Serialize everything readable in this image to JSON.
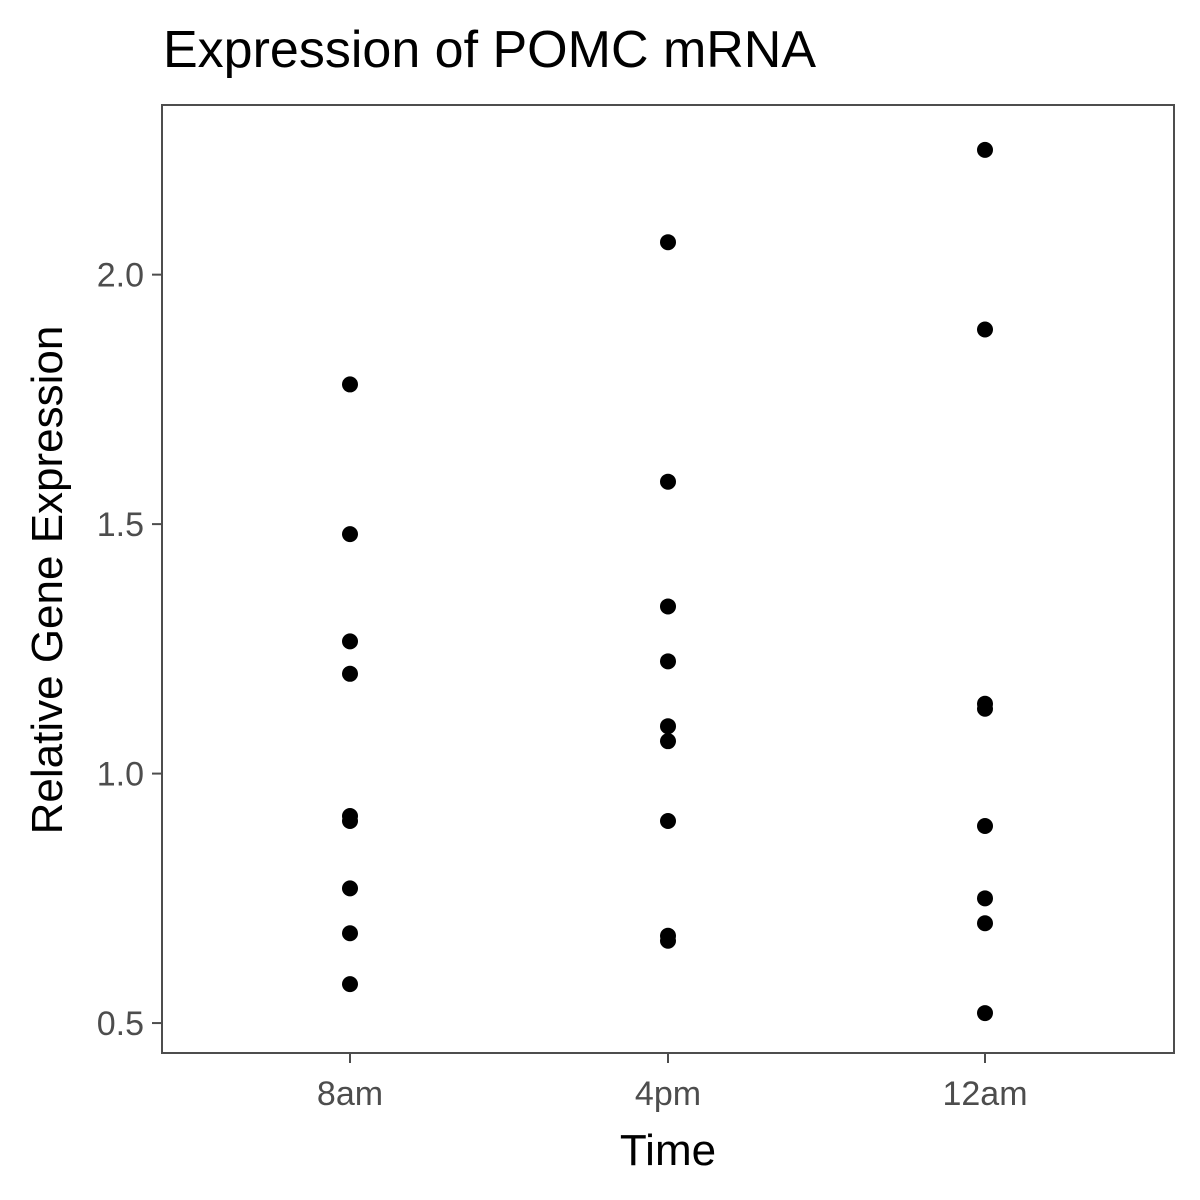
{
  "chart_data": {
    "type": "scatter",
    "title": "Expression of POMC mRNA",
    "xlabel": "Time",
    "ylabel": "Relative Gene Expression",
    "categories": [
      "8am",
      "4pm",
      "12am"
    ],
    "ylim": [
      0.44,
      2.34
    ],
    "yticks": [
      0.5,
      1.0,
      1.5,
      2.0
    ],
    "ytick_labels": [
      "0.5",
      "1.0",
      "1.5",
      "2.0"
    ],
    "grid": false,
    "legend": "none",
    "series": [
      {
        "values": [
          {
            "x": "8am",
            "y": [
              1.78,
              1.48,
              1.265,
              1.2,
              0.915,
              0.905,
              0.77,
              0.68,
              0.578
            ]
          },
          {
            "x": "4pm",
            "y": [
              2.065,
              1.585,
              1.335,
              1.225,
              1.095,
              1.065,
              0.905,
              0.675,
              0.665
            ]
          },
          {
            "x": "12am",
            "y": [
              2.25,
              1.89,
              1.14,
              1.13,
              0.895,
              0.75,
              0.7,
              0.52
            ]
          }
        ]
      }
    ],
    "colors": {
      "point": "#000000",
      "panel_border": "#4d4d4d",
      "tick": "#4d4d4d",
      "background": "#ffffff"
    }
  }
}
